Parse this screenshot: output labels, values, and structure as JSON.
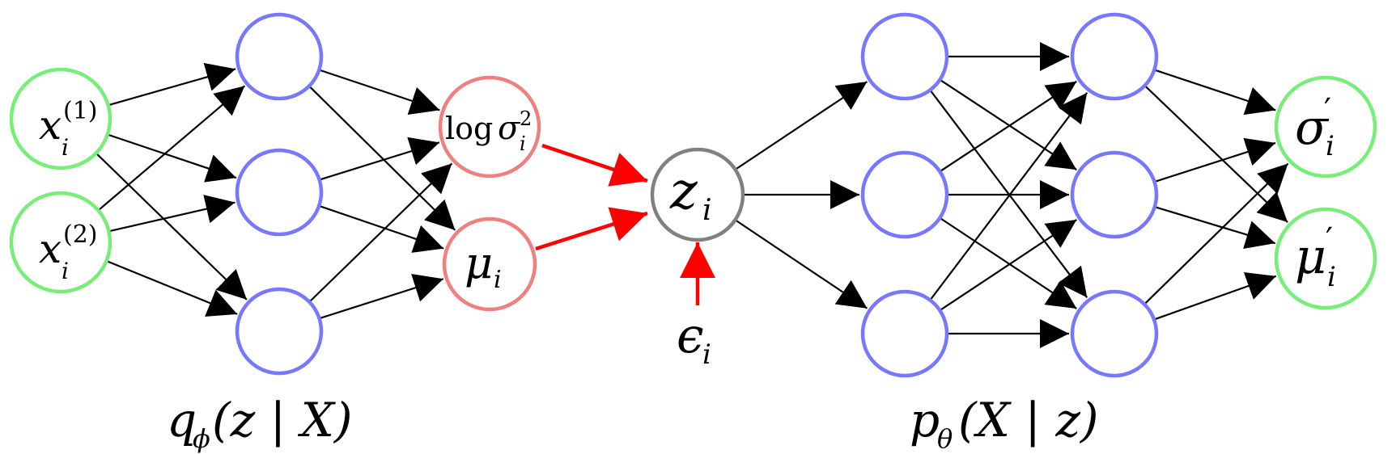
{
  "colors": {
    "input_output_node": "#77ee77",
    "hidden_node": "#7777ff",
    "encoder_output_node": "#f08080",
    "latent_node": "#808080",
    "edge": "#000000",
    "reparam_edge": "#ff0000"
  },
  "encoder": {
    "label_main": "q",
    "label_sub": "ϕ",
    "label_args": "(z | X)",
    "inputs": [
      {
        "base": "x",
        "sub": "i",
        "sup": "(1)"
      },
      {
        "base": "x",
        "sub": "i",
        "sup": "(2)"
      }
    ],
    "outputs": {
      "log_var": {
        "prefix": "log",
        "base": "σ",
        "sub": "i",
        "sup": "2"
      },
      "mean": {
        "base": "μ",
        "sub": "i"
      }
    }
  },
  "latent": {
    "base": "z",
    "sub": "i"
  },
  "noise": {
    "base": "ϵ",
    "sub": "i"
  },
  "decoder": {
    "label_main": "p",
    "label_sub": "θ",
    "label_args": "(X | z)",
    "outputs": [
      {
        "base": "σ",
        "prime": "′",
        "sub": "i"
      },
      {
        "base": "μ",
        "prime": "′",
        "sub": "i"
      }
    ]
  }
}
